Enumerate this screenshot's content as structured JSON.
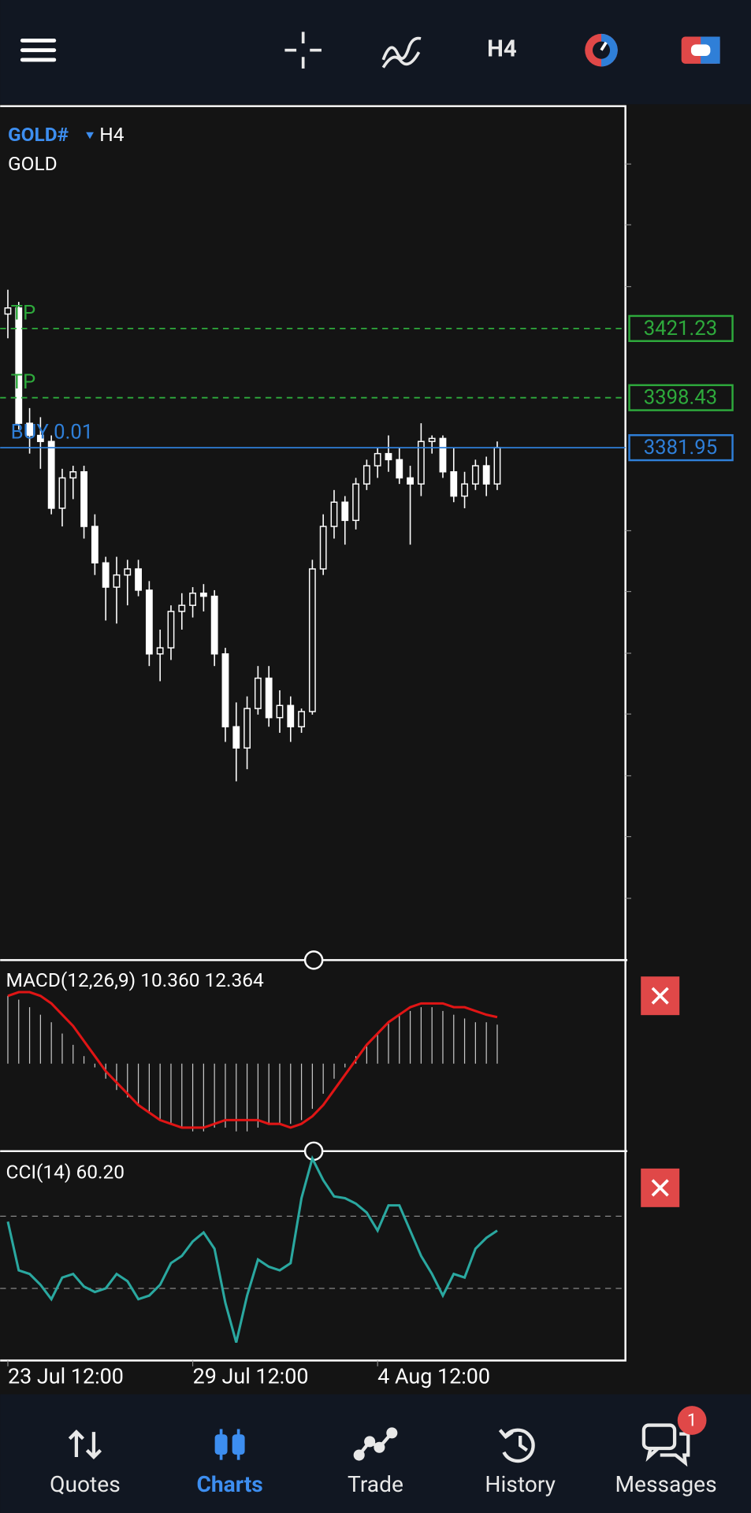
{
  "toolbar": {
    "timeframe": "H4"
  },
  "chart_data": [
    {
      "type": "candlestick",
      "symbol": "GOLD#",
      "timeframe": "H4",
      "description": "GOLD",
      "categories": [
        "23 Jul 12:00",
        null,
        null,
        null,
        null,
        null,
        null,
        null,
        null,
        null,
        null,
        null,
        null,
        null,
        null,
        null,
        null,
        "29 Jul 12:00",
        null,
        null,
        null,
        null,
        null,
        null,
        null,
        null,
        null,
        null,
        null,
        null,
        null,
        null,
        null,
        null,
        "4 Aug 12:00",
        null,
        null,
        null,
        null,
        null,
        null,
        null,
        null,
        null,
        null,
        null
      ],
      "ohlc": [
        [
          3426,
          3434,
          3418,
          3428
        ],
        [
          3428,
          3430,
          3388,
          3390
        ],
        [
          3390,
          3395,
          3380,
          3386
        ],
        [
          3386,
          3392,
          3375,
          3384
        ],
        [
          3384,
          3386,
          3360,
          3362
        ],
        [
          3362,
          3375,
          3356,
          3372
        ],
        [
          3372,
          3376,
          3365,
          3374
        ],
        [
          3374,
          3376,
          3352,
          3356
        ],
        [
          3356,
          3360,
          3340,
          3344
        ],
        [
          3344,
          3346,
          3325,
          3336
        ],
        [
          3336,
          3346,
          3324,
          3340
        ],
        [
          3340,
          3345,
          3330,
          3342
        ],
        [
          3342,
          3345,
          3333,
          3335
        ],
        [
          3335,
          3338,
          3310,
          3314
        ],
        [
          3314,
          3322,
          3305,
          3316
        ],
        [
          3316,
          3330,
          3312,
          3328
        ],
        [
          3328,
          3334,
          3322,
          3330
        ],
        [
          3330,
          3336,
          3326,
          3334
        ],
        [
          3334,
          3337,
          3328,
          3333
        ],
        [
          3333,
          3335,
          3310,
          3314
        ],
        [
          3314,
          3316,
          3285,
          3290
        ],
        [
          3290,
          3298,
          3272,
          3283
        ],
        [
          3283,
          3300,
          3276,
          3296
        ],
        [
          3296,
          3310,
          3294,
          3306
        ],
        [
          3306,
          3310,
          3290,
          3293
        ],
        [
          3293,
          3302,
          3288,
          3297
        ],
        [
          3297,
          3300,
          3285,
          3290
        ],
        [
          3290,
          3296,
          3288,
          3295
        ],
        [
          3295,
          3345,
          3294,
          3342
        ],
        [
          3342,
          3360,
          3340,
          3356
        ],
        [
          3356,
          3368,
          3352,
          3364
        ],
        [
          3364,
          3366,
          3350,
          3358
        ],
        [
          3358,
          3372,
          3355,
          3370
        ],
        [
          3370,
          3378,
          3368,
          3376
        ],
        [
          3376,
          3382,
          3372,
          3380
        ],
        [
          3380,
          3386,
          3374,
          3378
        ],
        [
          3378,
          3382,
          3370,
          3372
        ],
        [
          3372,
          3376,
          3350,
          3370
        ],
        [
          3370,
          3390,
          3366,
          3384
        ],
        [
          3384,
          3386,
          3380,
          3385
        ],
        [
          3385,
          3386,
          3372,
          3374
        ],
        [
          3374,
          3382,
          3364,
          3366
        ],
        [
          3366,
          3374,
          3362,
          3370
        ],
        [
          3370,
          3378,
          3368,
          3376
        ],
        [
          3376,
          3379,
          3366,
          3370
        ],
        [
          3370,
          3384,
          3368,
          3382
        ]
      ],
      "ylim": [
        3213.1,
        3494.5
      ],
      "orders": [
        {
          "label": "TP",
          "price": 3421.23,
          "color": "#2eaa3c"
        },
        {
          "label": "TP",
          "price": 3398.43,
          "color": "#2eaa3c"
        },
        {
          "label": "BUY 0.01",
          "price": 3381.95,
          "color": "#2f7fd8"
        }
      ]
    },
    {
      "type": "macd",
      "title": "MACD(12,26,9) 10.360 12.364",
      "histogram": [
        18,
        17,
        15,
        13,
        11,
        8,
        5,
        2,
        -1,
        -4,
        -7,
        -9,
        -11,
        -13,
        -15,
        -16,
        -17,
        -18,
        -18,
        -17,
        -17,
        -18,
        -18,
        -17,
        -16,
        -16,
        -16,
        -15,
        -12,
        -8,
        -4,
        -1,
        2,
        5,
        8,
        11,
        13,
        14,
        15,
        15,
        14,
        13,
        12,
        11,
        11,
        10.36
      ],
      "signal": [
        18,
        19,
        19,
        18,
        16,
        13,
        10,
        6,
        2,
        -2,
        -5,
        -8,
        -11,
        -13,
        -15,
        -16,
        -17,
        -17,
        -17,
        -16,
        -15,
        -15,
        -15,
        -15,
        -16,
        -16,
        -17,
        -16,
        -14,
        -11,
        -7,
        -3,
        1,
        5,
        8,
        11,
        13,
        15,
        16,
        16,
        16,
        15,
        15,
        14,
        13,
        12.364
      ],
      "histogram_color": "#c8c8c8",
      "signal_color": "#e01515",
      "ylim": [
        -23,
        27
      ]
    },
    {
      "type": "line",
      "title": "CCI(14) 60.20",
      "values": [
        85,
        -50,
        -60,
        -90,
        -130,
        -70,
        -60,
        -95,
        -110,
        -100,
        -60,
        -80,
        -130,
        -120,
        -90,
        -30,
        -10,
        30,
        55,
        10,
        -140,
        -250,
        -120,
        -20,
        -40,
        -50,
        -30,
        150,
        260,
        200,
        155,
        150,
        135,
        110,
        60,
        130,
        130,
        60,
        -10,
        -60,
        -120,
        -60,
        -70,
        10,
        40,
        60.2
      ],
      "color": "#2aa8a0",
      "ylim": [
        -300,
        275
      ],
      "levels": [
        -100,
        100
      ]
    }
  ],
  "nav": {
    "items": [
      {
        "label": "Quotes"
      },
      {
        "label": "Charts"
      },
      {
        "label": "Trade"
      },
      {
        "label": "History"
      },
      {
        "label": "Messages",
        "badge": 1
      }
    ],
    "active": 1
  }
}
